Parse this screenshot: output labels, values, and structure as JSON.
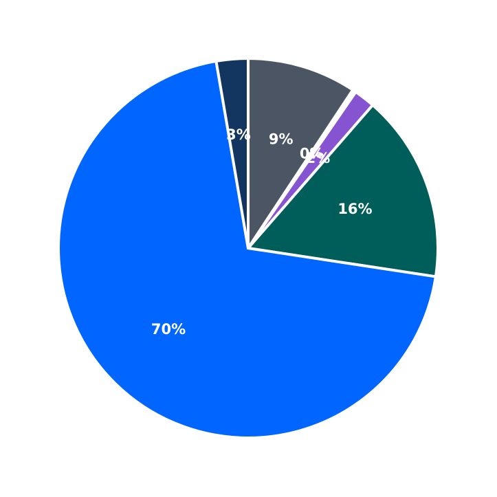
{
  "chart_data": {
    "type": "pie",
    "title": "",
    "start_angle_deg": 90,
    "direction": "clockwise",
    "slices": [
      {
        "label_text": "9%",
        "value": 9.3,
        "color": "#4b5563"
      },
      {
        "label_text": "0%",
        "value": 0.3,
        "color": "#ffffff"
      },
      {
        "label_text": "2%",
        "value": 1.8,
        "color": "#8654d1"
      },
      {
        "label_text": "16%",
        "value": 16.0,
        "color": "#005e5a"
      },
      {
        "label_text": "70%",
        "value": 69.9,
        "color": "#0066ff"
      },
      {
        "label_text": "3%",
        "value": 2.7,
        "color": "#12365f"
      }
    ]
  }
}
